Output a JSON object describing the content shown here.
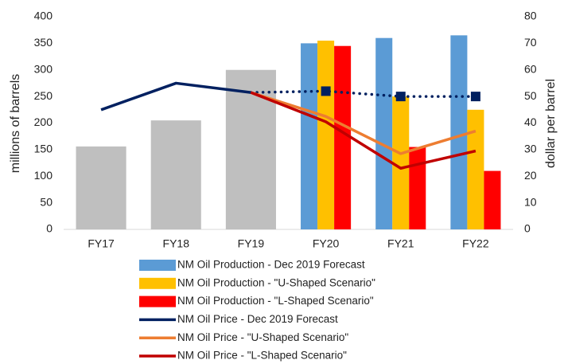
{
  "chart_data": {
    "type": "combo",
    "categories": [
      "FY17",
      "FY18",
      "FY19",
      "FY20",
      "FY21",
      "FY22"
    ],
    "ylabel": "millions of barrels",
    "y2label": "dollar per barrel",
    "ylim": [
      0,
      400
    ],
    "yticks": [
      0,
      50,
      100,
      150,
      200,
      250,
      300,
      350,
      400
    ],
    "y2lim": [
      0,
      80
    ],
    "y2ticks": [
      0,
      10,
      20,
      30,
      40,
      50,
      60,
      70,
      80
    ],
    "legend": "bottom",
    "series": [
      {
        "type": "bar",
        "color": "#bfbfbf",
        "values": [
          156,
          205,
          300,
          null,
          null,
          null
        ]
      },
      {
        "type": "bar",
        "name": "NM Oil Production - Dec 2019 Forecast",
        "color": "#5b9bd5",
        "values": [
          null,
          null,
          null,
          350,
          360,
          365
        ]
      },
      {
        "type": "bar",
        "name": "NM Oil Production - \"U-Shaped Scenario\"",
        "color": "#ffc000",
        "values": [
          null,
          null,
          null,
          355,
          250,
          225
        ]
      },
      {
        "type": "bar",
        "name": "NM Oil Production - \"L-Shaped Scenario\"",
        "color": "#ff0000",
        "values": [
          null,
          null,
          null,
          345,
          155,
          110
        ]
      },
      {
        "type": "line",
        "axis": "y2",
        "name": "NM Oil Price - Dec 2019 Forecast",
        "color": "#002060",
        "values": [
          45,
          55,
          51.5,
          52,
          50,
          50
        ],
        "dotted_from": 2,
        "markers_from": 3
      },
      {
        "type": "line",
        "axis": "y2",
        "name": "NM Oil Price - \"U-Shaped Scenario\"",
        "color": "#ed7d31",
        "values": [
          null,
          null,
          51.5,
          42.5,
          28.5,
          37
        ]
      },
      {
        "type": "line",
        "axis": "y2",
        "name": "NM Oil Price - \"L-Shaped Scenario\"",
        "color": "#c00000",
        "values": [
          null,
          null,
          51.5,
          40.5,
          23,
          29.5
        ]
      }
    ]
  }
}
